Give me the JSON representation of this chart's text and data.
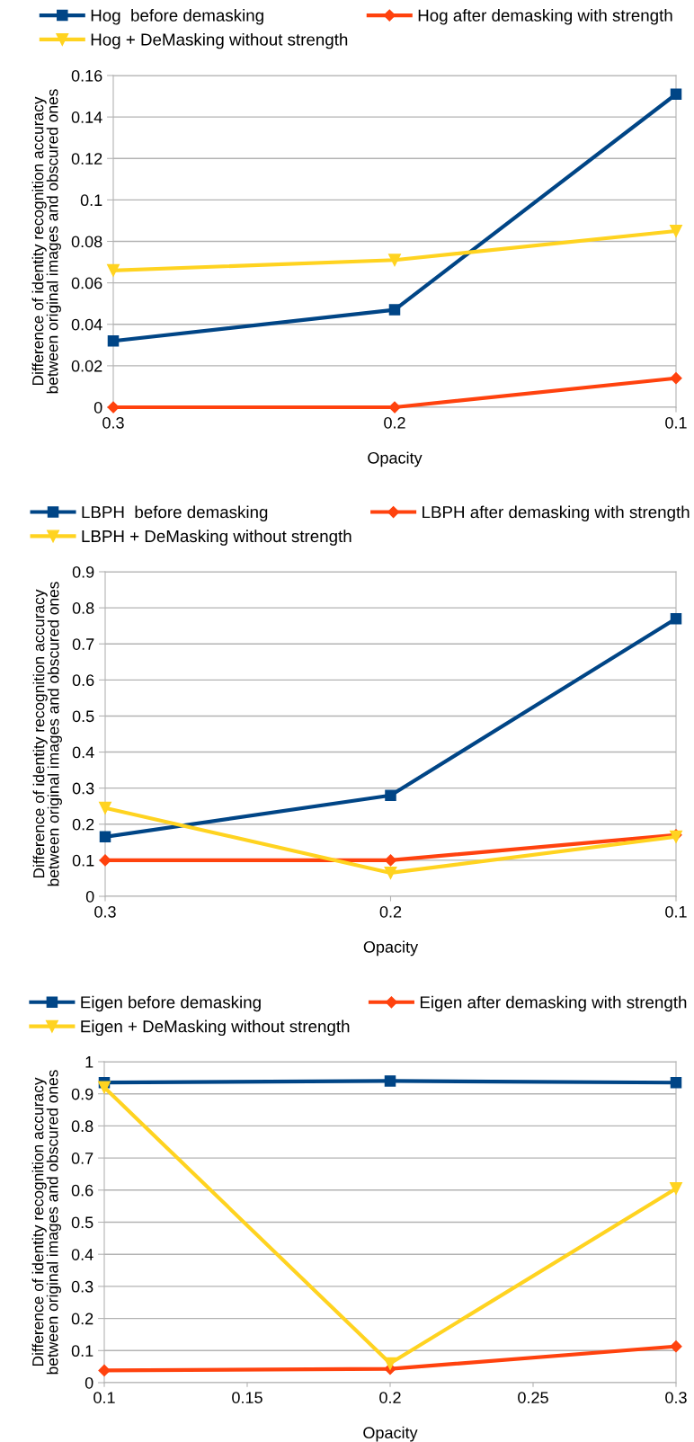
{
  "chart_data": [
    {
      "type": "line",
      "xlabel": "Opacity",
      "ylabel": "Difference of identity recognition accuracy\nbetween original images and obscured ones",
      "categories": [
        "0.3",
        "0.2",
        "0.1"
      ],
      "ylim": [
        0,
        0.16
      ],
      "yticks": [
        0,
        0.02,
        0.04,
        0.06,
        0.08,
        0.1,
        0.12,
        0.14,
        0.16
      ],
      "grid": "y",
      "legend": "top",
      "line_style": "solid",
      "series": [
        {
          "name": "Hog  before demasking",
          "color": "#004586",
          "marker": "square",
          "values": [
            0.032,
            0.047,
            0.151
          ]
        },
        {
          "name": "Hog after demasking with strength",
          "color": "#ff420e",
          "marker": "diamond",
          "values": [
            0,
            0,
            0.014
          ]
        },
        {
          "name": "Hog + DeMasking without strength",
          "color": "#ffd320",
          "marker": "triangle",
          "values": [
            0.066,
            0.071,
            0.085
          ]
        }
      ]
    },
    {
      "type": "line",
      "xlabel": "Opacity",
      "ylabel": "Difference of identity recognition accuracy\nbetween original images and obscured ones",
      "categories": [
        "0.3",
        "0.2",
        "0.1"
      ],
      "ylim": [
        0,
        0.9
      ],
      "yticks": [
        0,
        0.1,
        0.2,
        0.3,
        0.4,
        0.5,
        0.6,
        0.7,
        0.8,
        0.9
      ],
      "grid": "y",
      "legend": "top",
      "line_style": "solid",
      "series": [
        {
          "name": "LBPH  before demasking",
          "color": "#004586",
          "marker": "square",
          "values": [
            0.165,
            0.28,
            0.77
          ]
        },
        {
          "name": "LBPH after demasking with strength",
          "color": "#ff420e",
          "marker": "diamond",
          "values": [
            0.1,
            0.1,
            0.17
          ]
        },
        {
          "name": "LBPH + DeMasking without strength",
          "color": "#ffd320",
          "marker": "triangle",
          "values": [
            0.245,
            0.065,
            0.165
          ]
        }
      ]
    },
    {
      "type": "line",
      "xlabel": "Opacity",
      "ylabel": "Difference of identity recognition accuracy\nbetween original images and obscured ones",
      "x": [
        0.1,
        0.2,
        0.3
      ],
      "xlim": [
        0.1,
        0.3
      ],
      "xticks": [
        0.1,
        0.15,
        0.2,
        0.25,
        0.3
      ],
      "ylim": [
        0,
        1
      ],
      "yticks": [
        0,
        0.1,
        0.2,
        0.3,
        0.4,
        0.5,
        0.6,
        0.7,
        0.8,
        0.9,
        1
      ],
      "grid": "y",
      "legend": "top",
      "line_style": "solid",
      "series": [
        {
          "name": "Eigen before demasking",
          "color": "#004586",
          "marker": "square",
          "values": [
            0.935,
            0.94,
            0.935
          ]
        },
        {
          "name": "Eigen after demasking with strength",
          "color": "#ff420e",
          "marker": "diamond",
          "values": [
            0.038,
            0.043,
            0.113
          ]
        },
        {
          "name": "Eigen + DeMasking without strength",
          "color": "#ffd320",
          "marker": "triangle",
          "values": [
            0.92,
            0.06,
            0.605
          ]
        }
      ]
    }
  ]
}
